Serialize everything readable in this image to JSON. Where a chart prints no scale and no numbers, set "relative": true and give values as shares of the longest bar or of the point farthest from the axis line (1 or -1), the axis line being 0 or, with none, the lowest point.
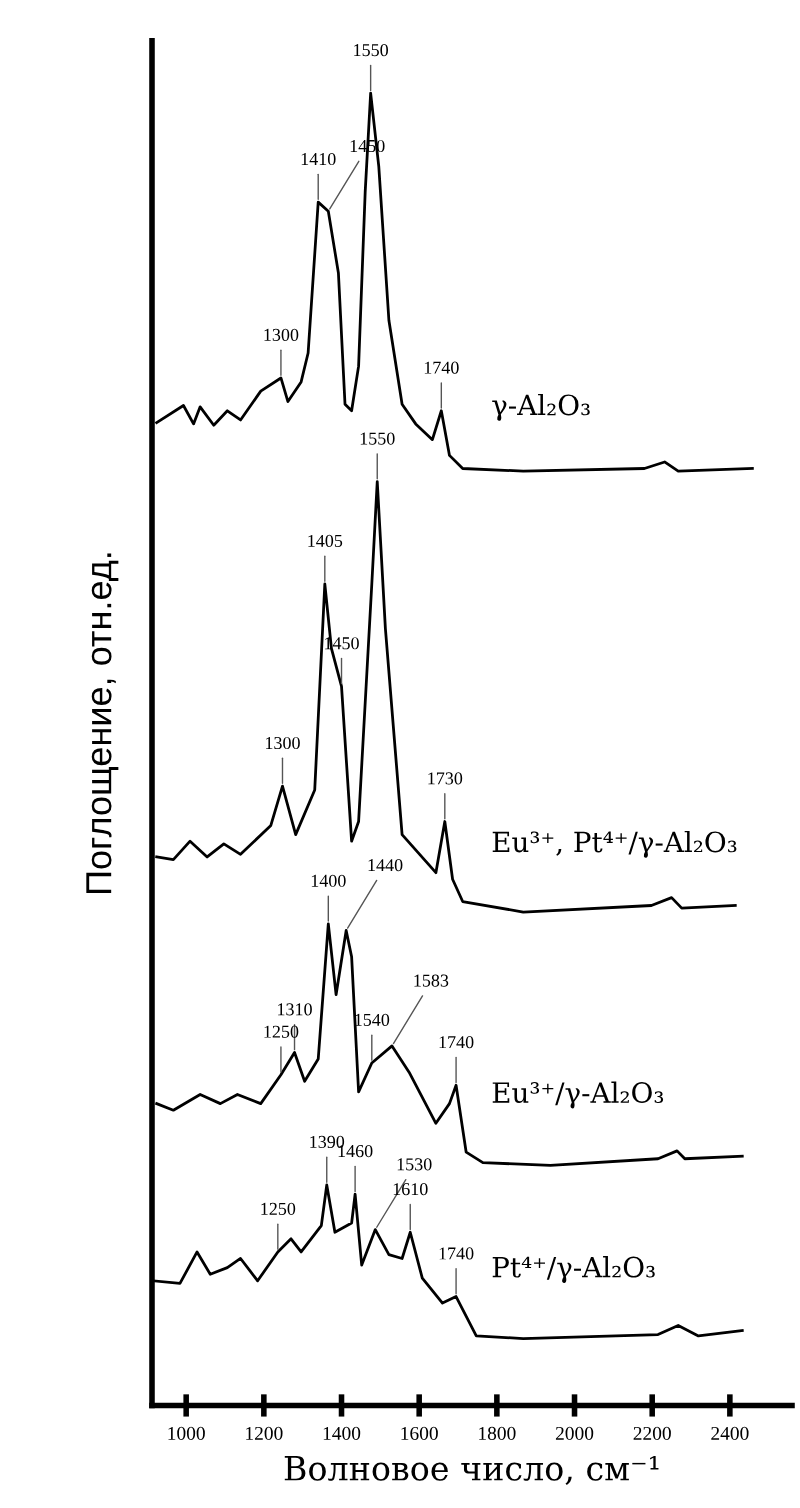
{
  "chart_data": {
    "type": "line",
    "relative": true,
    "xlabel": "Волновое число, см⁻¹",
    "ylabel": "Поглощение, отн.ед.",
    "xlim": [
      912,
      2560
    ],
    "xticks": [
      1000,
      1200,
      1400,
      1600,
      1800,
      2000,
      2200,
      2400
    ],
    "grid": false,
    "legend": false,
    "marker": "none",
    "line_style": "solid",
    "series": [
      {
        "name": "γ-Al₂O₃",
        "color": "#000000",
        "x": [
          924,
          993,
          1019,
          1036,
          1071,
          1106,
          1140,
          1192,
          1244,
          1262,
          1296,
          1314,
          1340,
          1366,
          1392,
          1409,
          1426,
          1444,
          1461,
          1475,
          1496,
          1522,
          1556,
          1591,
          1634,
          1657,
          1678,
          1712,
          1868,
          2180,
          2232,
          2267,
          2458
        ],
        "values": [
          0.749,
          0.762,
          0.748,
          0.761,
          0.747,
          0.758,
          0.751,
          0.773,
          0.783,
          0.765,
          0.78,
          0.802,
          0.917,
          0.91,
          0.863,
          0.763,
          0.758,
          0.792,
          0.925,
          1.0,
          0.944,
          0.827,
          0.763,
          0.748,
          0.736,
          0.758,
          0.724,
          0.714,
          0.712,
          0.714,
          0.719,
          0.712,
          0.714
        ]
      },
      {
        "name": "Eu³⁺, Pt⁴⁺/γ-Al₂O₃",
        "color": "#000000",
        "x": [
          924,
          967,
          1010,
          1054,
          1097,
          1140,
          1218,
          1248,
          1282,
          1331,
          1357,
          1374,
          1400,
          1426,
          1444,
          1478,
          1492,
          1513,
          1556,
          1643,
          1666,
          1686,
          1712,
          1868,
          2198,
          2250,
          2276,
          2414
        ],
        "values": [
          0.418,
          0.416,
          0.43,
          0.418,
          0.428,
          0.42,
          0.442,
          0.472,
          0.435,
          0.469,
          0.626,
          0.577,
          0.548,
          0.43,
          0.445,
          0.626,
          0.704,
          0.592,
          0.435,
          0.406,
          0.445,
          0.401,
          0.384,
          0.376,
          0.381,
          0.387,
          0.379,
          0.381
        ]
      },
      {
        "name": "Eu³⁺/γ-Al₂O₃",
        "color": "#000000",
        "x": [
          924,
          967,
          1036,
          1088,
          1132,
          1192,
          1244,
          1279,
          1305,
          1340,
          1366,
          1386,
          1412,
          1426,
          1444,
          1478,
          1530,
          1574,
          1643,
          1678,
          1695,
          1721,
          1764,
          1938,
          2215,
          2264,
          2284,
          2432
        ],
        "values": [
          0.23,
          0.225,
          0.237,
          0.23,
          0.237,
          0.23,
          0.252,
          0.269,
          0.247,
          0.264,
          0.367,
          0.313,
          0.362,
          0.342,
          0.239,
          0.261,
          0.274,
          0.254,
          0.215,
          0.23,
          0.244,
          0.193,
          0.185,
          0.183,
          0.188,
          0.194,
          0.188,
          0.19
        ]
      },
      {
        "name": "Pt⁴⁺/γ-Al₂O₃",
        "color": "#000000",
        "x": [
          915,
          984,
          1028,
          1062,
          1106,
          1140,
          1184,
          1236,
          1270,
          1296,
          1348,
          1362,
          1383,
          1426,
          1435,
          1452,
          1487,
          1522,
          1556,
          1577,
          1608,
          1660,
          1695,
          1747,
          1868,
          2215,
          2267,
          2319,
          2432
        ],
        "values": [
          0.095,
          0.093,
          0.117,
          0.1,
          0.105,
          0.112,
          0.095,
          0.117,
          0.127,
          0.117,
          0.137,
          0.168,
          0.132,
          0.139,
          0.161,
          0.107,
          0.134,
          0.115,
          0.112,
          0.132,
          0.097,
          0.078,
          0.083,
          0.053,
          0.051,
          0.054,
          0.061,
          0.053,
          0.057
        ]
      }
    ],
    "annotations": [
      {
        "text": "1550",
        "x": 1475,
        "y": 1.0
      },
      {
        "text": "1410",
        "x": 1340,
        "y": 0.917
      },
      {
        "text": "1450",
        "x": 1366,
        "y": 0.91
      },
      {
        "text": "1300",
        "x": 1244,
        "y": 0.783
      },
      {
        "text": "1740",
        "x": 1657,
        "y": 0.758
      },
      {
        "text": "1550",
        "x": 1492,
        "y": 0.704
      },
      {
        "text": "1405",
        "x": 1357,
        "y": 0.626
      },
      {
        "text": "1450",
        "x": 1400,
        "y": 0.548
      },
      {
        "text": "1300",
        "x": 1248,
        "y": 0.472
      },
      {
        "text": "1730",
        "x": 1666,
        "y": 0.445
      },
      {
        "text": "1400",
        "x": 1366,
        "y": 0.367
      },
      {
        "text": "1440",
        "x": 1412,
        "y": 0.362
      },
      {
        "text": "1540",
        "x": 1478,
        "y": 0.261
      },
      {
        "text": "1583",
        "x": 1530,
        "y": 0.274
      },
      {
        "text": "1310",
        "x": 1279,
        "y": 0.269
      },
      {
        "text": "1250",
        "x": 1244,
        "y": 0.252
      },
      {
        "text": "1740",
        "x": 1695,
        "y": 0.244
      },
      {
        "text": "1390",
        "x": 1362,
        "y": 0.168
      },
      {
        "text": "1460",
        "x": 1435,
        "y": 0.161
      },
      {
        "text": "1530",
        "x": 1487,
        "y": 0.134
      },
      {
        "text": "1610",
        "x": 1577,
        "y": 0.132
      },
      {
        "text": "1250",
        "x": 1236,
        "y": 0.117
      },
      {
        "text": "1740",
        "x": 1695,
        "y": 0.083
      }
    ]
  }
}
